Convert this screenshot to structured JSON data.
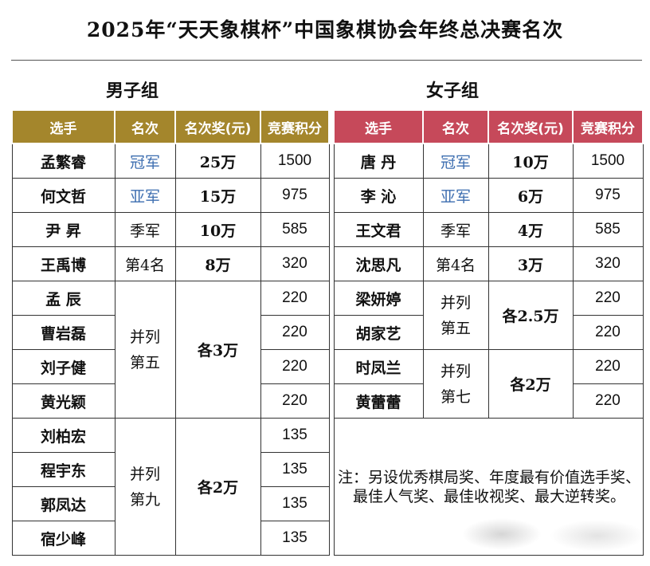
{
  "title": "2025年“天天象棋杯”中国象棋协会年终总决赛名次",
  "men": {
    "group_title": "男子组",
    "headers": [
      "选手",
      "名次",
      "名次奖(元)",
      "竞赛积分"
    ],
    "rows": [
      {
        "name": "孟繁睿",
        "rank": "冠军",
        "prize": "25万",
        "points": "1500"
      },
      {
        "name": "何文哲",
        "rank": "亚军",
        "prize": "15万",
        "points": "975"
      },
      {
        "name": "尹 昇",
        "rank": "季军",
        "prize": "10万",
        "points": "585"
      },
      {
        "name": "王禹博",
        "rank": "第4名",
        "prize": "8万",
        "points": "320"
      },
      {
        "name": "孟 辰",
        "points": "220"
      },
      {
        "name": "曹岩磊",
        "points": "220"
      },
      {
        "name": "刘子健",
        "points": "220"
      },
      {
        "name": "黄光颖",
        "points": "220"
      },
      {
        "name": "刘柏宏",
        "points": "135"
      },
      {
        "name": "程宇东",
        "points": "135"
      },
      {
        "name": "郭凤达",
        "points": "135"
      },
      {
        "name": "宿少峰",
        "points": "135"
      }
    ],
    "tie5": {
      "rank": "并列\n第五",
      "prize": "各3万"
    },
    "tie9": {
      "rank": "并列\n第九",
      "prize": "各2万"
    }
  },
  "women": {
    "group_title": "女子组",
    "headers": [
      "选手",
      "名次",
      "名次奖(元)",
      "竞赛积分"
    ],
    "rows": [
      {
        "name": "唐 丹",
        "rank": "冠军",
        "prize": "10万",
        "points": "1500"
      },
      {
        "name": "李 沁",
        "rank": "亚军",
        "prize": "6万",
        "points": "975"
      },
      {
        "name": "王文君",
        "rank": "季军",
        "prize": "4万",
        "points": "585"
      },
      {
        "name": "沈思凡",
        "rank": "第4名",
        "prize": "3万",
        "points": "320"
      },
      {
        "name": "梁妍婷",
        "points": "220"
      },
      {
        "name": "胡家艺",
        "points": "220"
      },
      {
        "name": "时凤兰",
        "points": "220"
      },
      {
        "name": "黄蕾蕾",
        "points": "220"
      }
    ],
    "tie5": {
      "rank": "并列\n第五",
      "prize": "各2.5万"
    },
    "tie7": {
      "rank": "并列\n第七",
      "prize": "各2万"
    },
    "note": "注：另设优秀棋局奖、年度最有价值选手奖、最佳人气奖、最佳收视奖、最大逆转奖。"
  },
  "colors": {
    "men_header": "#a4862c",
    "women_header": "#c6495a",
    "title_rank": "#3d6eb0"
  }
}
